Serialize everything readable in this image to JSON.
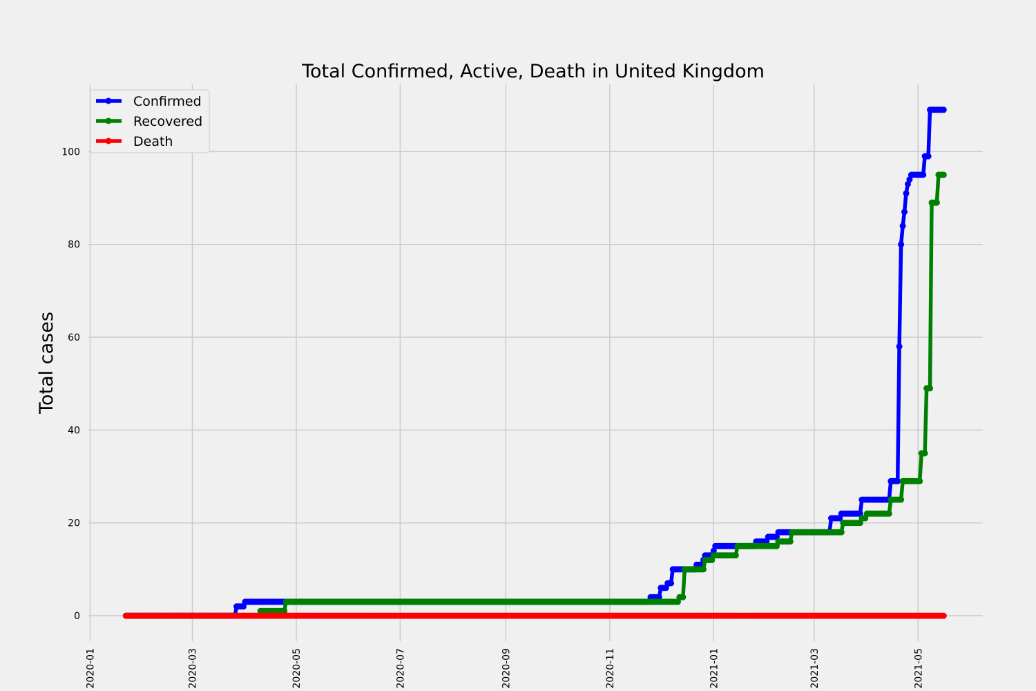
{
  "chart_data": {
    "type": "line",
    "title": "Total Confirmed, Active, Death in United Kingdom",
    "xlabel": "",
    "ylabel": "Total cases",
    "xlim": [
      "2019-12-31",
      "2021-06-08"
    ],
    "ylim": [
      -5.5,
      114.5
    ],
    "x_ticks": [
      "2020-01",
      "2020-03",
      "2020-05",
      "2020-07",
      "2020-09",
      "2020-11",
      "2021-01",
      "2021-03",
      "2021-05"
    ],
    "y_ticks": [
      0,
      20,
      40,
      60,
      80,
      100
    ],
    "grid": true,
    "legend_position": "top-left",
    "series": [
      {
        "name": "Confirmed",
        "color": "#0000ff",
        "points": [
          [
            "2020-01-22",
            0
          ],
          [
            "2020-03-26",
            0
          ],
          [
            "2020-03-27",
            2
          ],
          [
            "2020-03-31",
            2
          ],
          [
            "2020-04-01",
            3
          ],
          [
            "2020-11-24",
            3
          ],
          [
            "2020-11-25",
            4
          ],
          [
            "2020-11-30",
            4
          ],
          [
            "2020-12-01",
            6
          ],
          [
            "2020-12-04",
            6
          ],
          [
            "2020-12-05",
            7
          ],
          [
            "2020-12-07",
            7
          ],
          [
            "2020-12-08",
            10
          ],
          [
            "2020-12-21",
            10
          ],
          [
            "2020-12-22",
            11
          ],
          [
            "2020-12-25",
            11
          ],
          [
            "2020-12-26",
            12
          ],
          [
            "2020-12-27",
            13
          ],
          [
            "2020-12-31",
            13
          ],
          [
            "2021-01-01",
            14
          ],
          [
            "2021-01-02",
            15
          ],
          [
            "2021-01-25",
            15
          ],
          [
            "2021-01-26",
            16
          ],
          [
            "2021-02-01",
            16
          ],
          [
            "2021-02-02",
            17
          ],
          [
            "2021-02-07",
            17
          ],
          [
            "2021-02-08",
            18
          ],
          [
            "2021-03-10",
            18
          ],
          [
            "2021-03-11",
            21
          ],
          [
            "2021-03-16",
            21
          ],
          [
            "2021-03-17",
            22
          ],
          [
            "2021-03-28",
            22
          ],
          [
            "2021-03-29",
            25
          ],
          [
            "2021-04-14",
            25
          ],
          [
            "2021-04-15",
            29
          ],
          [
            "2021-04-19",
            29
          ],
          [
            "2021-04-20",
            58
          ],
          [
            "2021-04-21",
            80
          ],
          [
            "2021-04-22",
            84
          ],
          [
            "2021-04-23",
            87
          ],
          [
            "2021-04-24",
            91
          ],
          [
            "2021-04-25",
            93
          ],
          [
            "2021-04-27",
            95
          ],
          [
            "2021-05-04",
            95
          ],
          [
            "2021-05-05",
            99
          ],
          [
            "2021-05-07",
            99
          ],
          [
            "2021-05-08",
            109
          ],
          [
            "2021-05-16",
            109
          ]
        ]
      },
      {
        "name": "Recovered",
        "color": "#008000",
        "points": [
          [
            "2020-04-10",
            1
          ],
          [
            "2020-04-24",
            1
          ],
          [
            "2020-04-25",
            3
          ],
          [
            "2020-12-11",
            3
          ],
          [
            "2020-12-12",
            4
          ],
          [
            "2020-12-14",
            4
          ],
          [
            "2020-12-15",
            10
          ],
          [
            "2020-12-26",
            10
          ],
          [
            "2020-12-27",
            12
          ],
          [
            "2020-12-31",
            12
          ],
          [
            "2021-01-01",
            13
          ],
          [
            "2021-01-14",
            13
          ],
          [
            "2021-01-15",
            15
          ],
          [
            "2021-02-07",
            15
          ],
          [
            "2021-02-08",
            16
          ],
          [
            "2021-02-15",
            16
          ],
          [
            "2021-02-16",
            18
          ],
          [
            "2021-03-17",
            18
          ],
          [
            "2021-03-18",
            20
          ],
          [
            "2021-03-28",
            20
          ],
          [
            "2021-03-29",
            21
          ],
          [
            "2021-03-31",
            21
          ],
          [
            "2021-04-01",
            22
          ],
          [
            "2021-04-14",
            22
          ],
          [
            "2021-04-15",
            25
          ],
          [
            "2021-04-21",
            25
          ],
          [
            "2021-04-22",
            29
          ],
          [
            "2021-05-02",
            29
          ],
          [
            "2021-05-03",
            35
          ],
          [
            "2021-05-05",
            35
          ],
          [
            "2021-05-06",
            49
          ],
          [
            "2021-05-08",
            49
          ],
          [
            "2021-05-09",
            89
          ],
          [
            "2021-05-12",
            89
          ],
          [
            "2021-05-13",
            95
          ],
          [
            "2021-05-16",
            95
          ]
        ]
      },
      {
        "name": "Death",
        "color": "#ff0000",
        "points": [
          [
            "2020-01-22",
            0
          ],
          [
            "2021-05-16",
            0
          ]
        ]
      }
    ]
  }
}
